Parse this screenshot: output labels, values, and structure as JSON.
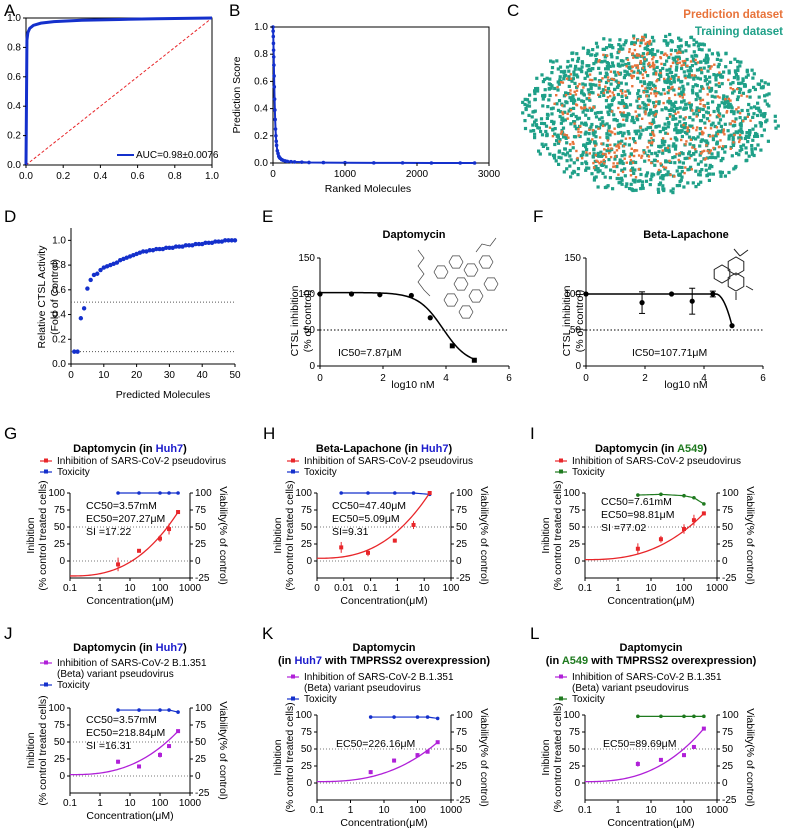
{
  "colors": {
    "red": "#e8262a",
    "blue": "#1430cc",
    "green": "#1f7a1f",
    "magenta": "#b020d8",
    "orange": "#e8733a",
    "teal": "#1fa088",
    "black": "#000000",
    "host_blue": "#1b1bcc",
    "host_green": "#1f7a1f"
  },
  "panels": [
    {
      "id": "A",
      "letter": "A",
      "axes": {
        "x_ticks": [
          "0.0",
          "0.2",
          "0.4",
          "0.6",
          "0.8",
          "1.0"
        ],
        "y_ticks": [
          "0.0",
          "0.2",
          "0.4",
          "0.6",
          "0.8",
          "1.0"
        ]
      },
      "legend": {
        "label": "AUC=0.98±0.0076"
      }
    },
    {
      "id": "B",
      "letter": "B",
      "axes": {
        "xlabel": "Ranked Molecules",
        "ylabel": "Prediction Score",
        "x_ticks": [
          "0",
          "1000",
          "2000",
          "3000"
        ],
        "y_ticks": [
          "0.0",
          "0.2",
          "0.4",
          "0.6",
          "0.8",
          "1.0"
        ]
      }
    },
    {
      "id": "C",
      "letter": "C",
      "legend": {
        "prediction": "Prediction dataset",
        "training": "Training dataset"
      }
    },
    {
      "id": "D",
      "letter": "D",
      "axes": {
        "xlabel": "Predicted Molecules",
        "ylabel_1": "Relative CTSL Activity",
        "ylabel_2": "(Fold of Control)",
        "x_ticks": [
          "0",
          "10",
          "20",
          "30",
          "40",
          "50"
        ],
        "y_ticks": [
          "0.0",
          "0.2",
          "0.4",
          "0.6",
          "0.8",
          "1.0"
        ]
      }
    },
    {
      "id": "E",
      "letter": "E",
      "title": "Daptomycin",
      "axes": {
        "xlabel": "log10 nM",
        "ylabel_1": "CTSL inhibition",
        "ylabel_2": "(% of control)",
        "x_ticks": [
          "0",
          "2",
          "4",
          "6"
        ],
        "y_ticks": [
          "0",
          "50",
          "100",
          "150"
        ]
      },
      "annotation": "IC50=7.87μM"
    },
    {
      "id": "F",
      "letter": "F",
      "title": "Beta-Lapachone",
      "axes": {
        "xlabel": "log10 nM",
        "ylabel_1": "CTSL inhibition",
        "ylabel_2": "(% of control)",
        "x_ticks": [
          "0",
          "2",
          "4",
          "6"
        ],
        "y_ticks": [
          "0",
          "50",
          "100",
          "150"
        ]
      },
      "annotation": "IC50=107.71μM"
    },
    {
      "id": "G",
      "letter": "G",
      "title_pre": "Daptomycin (in ",
      "host": "Huh7",
      "title_post": ")",
      "legend": [
        "Inhibition of SARS-CoV-2 pseudovirus",
        "Toxicity"
      ],
      "annotations": [
        "CC50=3.57mM",
        "EC50=207.27μM",
        "SI  =17.22"
      ]
    },
    {
      "id": "H",
      "letter": "H",
      "title_pre": "Beta-Lapachone (in ",
      "host": "Huh7",
      "title_post": ")",
      "legend": [
        "Inhibition of SARS-CoV-2 pseudovirus",
        "Toxicity"
      ],
      "annotations": [
        "CC50=47.40μM",
        "EC50=5.09μM",
        "SI=9.31"
      ]
    },
    {
      "id": "I",
      "letter": "I",
      "title_pre": "Daptomycin (in ",
      "host": "A549",
      "title_post": ")",
      "legend": [
        "Inhibition of SARS-CoV-2 pseudovirus",
        "Toxicity"
      ],
      "annotations": [
        "CC50=7.61mM",
        "EC50=98.81μM",
        "SI  =77.02"
      ]
    },
    {
      "id": "J",
      "letter": "J",
      "title_pre": "Daptomycin (in ",
      "host": "Huh7",
      "title_post": ")",
      "legend": [
        "Inhibition of SARS-CoV-2 B.1.351",
        "(Beta) variant pseudovirus",
        "Toxicity"
      ],
      "annotations": [
        "CC50=3.57mM",
        "EC50=218.84μM",
        "SI  =16.31"
      ]
    },
    {
      "id": "K",
      "letter": "K",
      "title_line1": "Daptomycin",
      "title_pre": "(in ",
      "host": "Huh7",
      "title_post": " with TMPRSS2 overexpression)",
      "legend": [
        "Inhibition of SARS-CoV-2 B.1.351",
        "(Beta) variant pseudovirus",
        "Toxicity"
      ],
      "annotations": [
        "EC50=226.16μM"
      ]
    },
    {
      "id": "L",
      "letter": "L",
      "title_line1": "Daptomycin",
      "title_pre": "(in ",
      "host": "A549",
      "title_post": " with TMPRSS2 overexpression)",
      "legend": [
        "Inhibition of SARS-CoV-2 B.1.351",
        "(Beta) variant pseudovirus",
        "Toxicity"
      ],
      "annotations": [
        "EC50=89.69μM"
      ]
    }
  ],
  "virus_axes": {
    "xlabel": "Concentration(μM)",
    "ylabel_1": "Inibition",
    "ylabel_2": "(% control treated cells)",
    "ylabel_right": "Viability(% of control)",
    "left_ticks": [
      "0",
      "25",
      "50",
      "75",
      "100"
    ],
    "right_ticks": [
      "-25",
      "0",
      "25",
      "50",
      "75",
      "100"
    ],
    "x_ticks_G": [
      "0.1",
      "1",
      "10",
      "100",
      "1000"
    ],
    "x_ticks_H": [
      "0",
      "0.01",
      "0.1",
      "1",
      "10",
      "100"
    ],
    "x_ticks_I": [
      "0.1",
      "1",
      "10",
      "100",
      "1000"
    ],
    "x_ticks_J": [
      "0.1",
      "1",
      "10",
      "100",
      "1000"
    ],
    "x_ticks_K": [
      "0.1",
      "1",
      "10",
      "100",
      "1000"
    ],
    "x_ticks_L": [
      "0.1",
      "1",
      "10",
      "100",
      "1000"
    ]
  },
  "chart_data": [
    {
      "panel": "A",
      "type": "line",
      "xlim": [
        0,
        1
      ],
      "ylim": [
        0,
        1
      ],
      "series": [
        {
          "name": "AUC=0.98±0.0076",
          "x": [
            0,
            0.005,
            0.01,
            0.02,
            0.04,
            0.08,
            0.15,
            0.3,
            0.5,
            0.7,
            1.0
          ],
          "y": [
            0,
            0.85,
            0.9,
            0.93,
            0.95,
            0.965,
            0.975,
            0.985,
            0.99,
            0.995,
            1.0
          ]
        }
      ]
    },
    {
      "panel": "B",
      "type": "scatter",
      "xlim": [
        0,
        3000
      ],
      "ylim": [
        0,
        1
      ],
      "x": [
        0,
        2,
        4,
        6,
        8,
        10,
        12,
        15,
        18,
        22,
        26,
        30,
        35,
        40,
        45,
        50,
        60,
        70,
        80,
        90,
        100,
        120,
        140,
        170,
        200,
        250,
        300,
        400,
        500,
        700,
        1000,
        1400,
        1800,
        2200,
        2600,
        2800
      ],
      "y": [
        1.0,
        0.97,
        0.93,
        0.88,
        0.83,
        0.78,
        0.72,
        0.64,
        0.56,
        0.47,
        0.39,
        0.32,
        0.25,
        0.2,
        0.16,
        0.13,
        0.09,
        0.07,
        0.05,
        0.04,
        0.035,
        0.025,
        0.02,
        0.015,
        0.012,
        0.01,
        0.008,
        0.006,
        0.004,
        0.003,
        0.002,
        0.001,
        0.001,
        0.0,
        0.0,
        0.0
      ]
    },
    {
      "panel": "D",
      "type": "scatter",
      "xlim": [
        0,
        50
      ],
      "ylim": [
        0,
        1.1
      ],
      "x": [
        1,
        2,
        3,
        4,
        5,
        6,
        7,
        8,
        9,
        10,
        11,
        12,
        13,
        14,
        15,
        16,
        17,
        18,
        19,
        20,
        21,
        22,
        23,
        24,
        25,
        26,
        27,
        28,
        29,
        30,
        31,
        32,
        33,
        34,
        35,
        36,
        37,
        38,
        39,
        40,
        41,
        42,
        43,
        44,
        45,
        46,
        47,
        48,
        49,
        50
      ],
      "y": [
        0.1,
        0.1,
        0.37,
        0.45,
        0.61,
        0.68,
        0.72,
        0.73,
        0.76,
        0.78,
        0.79,
        0.8,
        0.81,
        0.82,
        0.84,
        0.85,
        0.86,
        0.87,
        0.88,
        0.89,
        0.9,
        0.91,
        0.91,
        0.92,
        0.92,
        0.93,
        0.93,
        0.93,
        0.94,
        0.94,
        0.94,
        0.95,
        0.95,
        0.95,
        0.96,
        0.96,
        0.96,
        0.97,
        0.97,
        0.97,
        0.98,
        0.98,
        0.98,
        0.99,
        0.99,
        0.99,
        1.0,
        1.0,
        1.0,
        1.0
      ],
      "reference_lines": [
        0.5,
        0.1
      ]
    },
    {
      "panel": "E",
      "type": "scatter",
      "title": "Daptomycin",
      "xlim": [
        0,
        6
      ],
      "ylim": [
        0,
        150
      ],
      "x": [
        0,
        1.0,
        1.9,
        2.9,
        3.5,
        4.2,
        4.9
      ],
      "y": [
        100,
        100,
        99,
        98,
        67,
        28,
        8
      ],
      "reference_line": 50
    },
    {
      "panel": "F",
      "type": "scatter",
      "title": "Beta-Lapachone",
      "xlim": [
        0,
        6
      ],
      "ylim": [
        0,
        150
      ],
      "x": [
        0,
        1.9,
        2.9,
        3.6,
        4.3,
        4.95
      ],
      "y": [
        100,
        88,
        100,
        90,
        100,
        56
      ],
      "err": [
        0,
        15,
        0,
        18,
        4,
        0
      ],
      "reference_line": 50
    },
    {
      "panel": "G",
      "type": "scatter",
      "xlim_log": [
        0.1,
        1000
      ],
      "ylim": [
        -25,
        100
      ],
      "series": [
        {
          "name": "Inhibition of SARS-CoV-2 pseudovirus",
          "x": [
            4,
            20,
            100,
            200,
            400
          ],
          "y": [
            -5,
            15,
            33,
            47,
            72
          ],
          "err": [
            10,
            0,
            5,
            8,
            0
          ]
        },
        {
          "name": "Toxicity",
          "x": [
            4,
            20,
            100,
            200,
            400
          ],
          "y": [
            100,
            100,
            100,
            100,
            100
          ]
        }
      ]
    },
    {
      "panel": "H",
      "type": "scatter",
      "xlim_log": [
        0.001,
        100
      ],
      "ylim": [
        -25,
        100
      ],
      "series": [
        {
          "name": "Inhibition of SARS-CoV-2 pseudovirus",
          "x": [
            0.008,
            0.08,
            0.8,
            4,
            16
          ],
          "y": [
            20,
            12,
            30,
            53,
            100
          ],
          "err": [
            8,
            5,
            3,
            6,
            0
          ]
        },
        {
          "name": "Toxicity",
          "x": [
            0.008,
            0.08,
            0.8,
            4,
            16
          ],
          "y": [
            100,
            100,
            100,
            100,
            98
          ]
        }
      ]
    },
    {
      "panel": "I",
      "type": "scatter",
      "xlim_log": [
        0.1,
        1000
      ],
      "ylim": [
        -25,
        100
      ],
      "series": [
        {
          "name": "Inhibition of SARS-CoV-2 pseudovirus",
          "x": [
            4,
            20,
            100,
            200,
            400
          ],
          "y": [
            18,
            32,
            47,
            60,
            70
          ],
          "err": [
            8,
            5,
            7,
            8,
            3
          ]
        },
        {
          "name": "Toxicity",
          "x": [
            4,
            20,
            100,
            200,
            400
          ],
          "y": [
            97,
            98,
            96,
            93,
            84
          ]
        }
      ]
    },
    {
      "panel": "J",
      "type": "scatter",
      "xlim_log": [
        0.1,
        1000
      ],
      "ylim": [
        -25,
        100
      ],
      "series": [
        {
          "name": "Inhibition of SARS-CoV-2 B.1.351 (Beta) variant pseudovirus",
          "x": [
            4,
            20,
            100,
            200,
            400
          ],
          "y": [
            21,
            14,
            31,
            44,
            66
          ],
          "err": [
            3,
            3,
            4,
            3,
            2
          ]
        },
        {
          "name": "Toxicity",
          "x": [
            4,
            20,
            100,
            200,
            400
          ],
          "y": [
            97,
            97,
            97,
            97,
            94
          ]
        }
      ]
    },
    {
      "panel": "K",
      "type": "scatter",
      "xlim_log": [
        0.1,
        1000
      ],
      "ylim": [
        -25,
        100
      ],
      "series": [
        {
          "name": "Inhibition of SARS-CoV-2 B.1.351 (Beta) variant pseudovirus",
          "x": [
            4,
            20,
            100,
            200,
            400
          ],
          "y": [
            16,
            33,
            41,
            46,
            60
          ],
          "err": [
            3,
            3,
            3,
            2,
            2
          ]
        },
        {
          "name": "Toxicity",
          "x": [
            4,
            20,
            100,
            200,
            400
          ],
          "y": [
            97,
            97,
            97,
            97,
            95
          ]
        }
      ]
    },
    {
      "panel": "L",
      "type": "scatter",
      "xlim_log": [
        0.1,
        1000
      ],
      "ylim": [
        -25,
        100
      ],
      "series": [
        {
          "name": "Inhibition of SARS-CoV-2 B.1.351 (Beta) variant pseudovirus",
          "x": [
            4,
            20,
            100,
            200,
            400
          ],
          "y": [
            28,
            34,
            41,
            53,
            80
          ],
          "err": [
            4,
            2,
            3,
            2,
            2
          ]
        },
        {
          "name": "Toxicity",
          "x": [
            4,
            20,
            100,
            200,
            400
          ],
          "y": [
            98,
            98,
            98,
            98,
            98
          ]
        }
      ]
    }
  ]
}
